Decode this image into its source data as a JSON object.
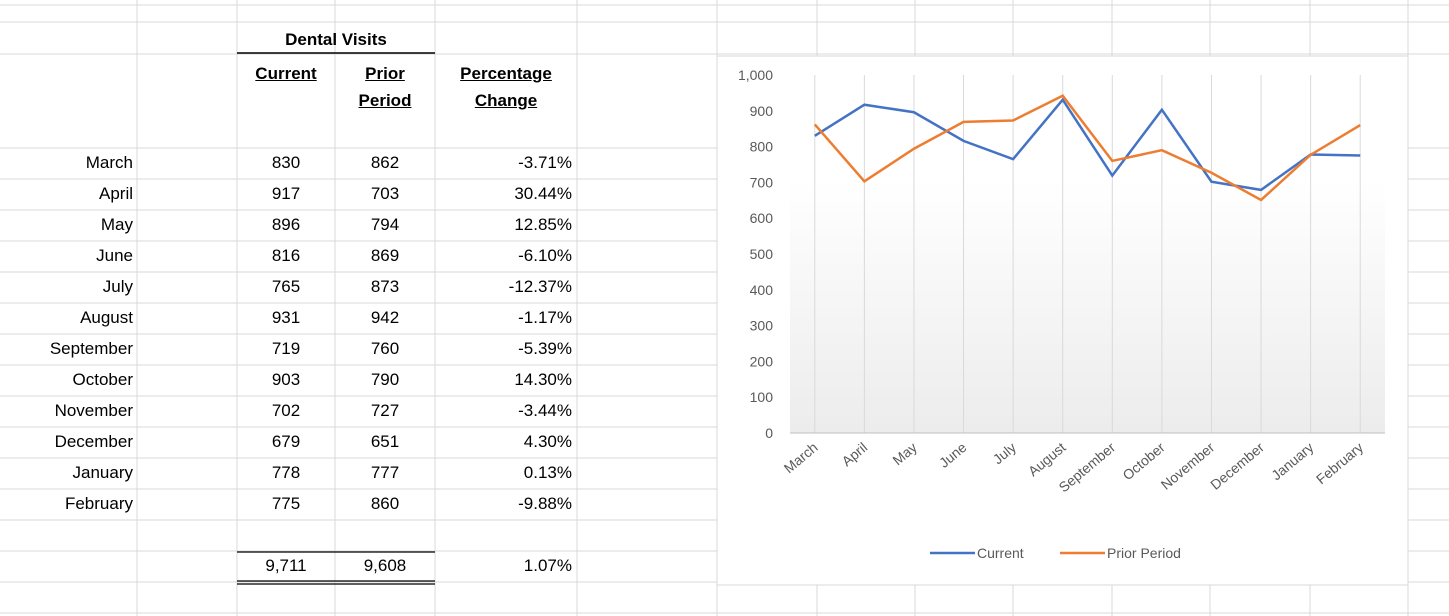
{
  "table": {
    "title": "Dental Visits",
    "columns": [
      "Current",
      "Prior Period",
      "Percentage Change"
    ],
    "rows": [
      [
        "March",
        "830",
        "862",
        "-3.71%"
      ],
      [
        "April",
        "917",
        "703",
        "30.44%"
      ],
      [
        "May",
        "896",
        "794",
        "12.85%"
      ],
      [
        "June",
        "816",
        "869",
        "-6.10%"
      ],
      [
        "July",
        "765",
        "873",
        "-12.37%"
      ],
      [
        "August",
        "931",
        "942",
        "-1.17%"
      ],
      [
        "September",
        "719",
        "760",
        "-5.39%"
      ],
      [
        "October",
        "903",
        "790",
        "14.30%"
      ],
      [
        "November",
        "702",
        "727",
        "-3.44%"
      ],
      [
        "December",
        "679",
        "651",
        "4.30%"
      ],
      [
        "January",
        "778",
        "777",
        "0.13%"
      ],
      [
        "February",
        "775",
        "860",
        "-9.88%"
      ]
    ],
    "totals": [
      "9,711",
      "9,608",
      "1.07%"
    ]
  },
  "chart_data": {
    "type": "line",
    "categories": [
      "March",
      "April",
      "May",
      "June",
      "July",
      "August",
      "September",
      "October",
      "November",
      "December",
      "January",
      "February"
    ],
    "series": [
      {
        "name": "Current",
        "color": "#4472c4",
        "values": [
          830,
          917,
          896,
          816,
          765,
          931,
          719,
          903,
          702,
          679,
          778,
          775
        ]
      },
      {
        "name": "Prior Period",
        "color": "#ed7d31",
        "values": [
          862,
          703,
          794,
          869,
          873,
          942,
          760,
          790,
          727,
          651,
          777,
          860
        ]
      }
    ],
    "ylim": [
      0,
      1000
    ],
    "yticks": [
      0,
      100,
      200,
      300,
      400,
      500,
      600,
      700,
      800,
      900,
      {
        "value": 1000,
        "label": "1,000"
      }
    ],
    "legend": "bottom"
  }
}
